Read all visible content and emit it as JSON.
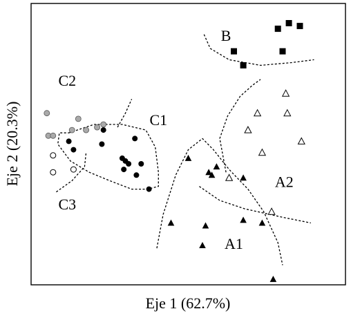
{
  "chart_data": {
    "type": "scatter",
    "xlabel": "Eje 1 (62.7%)",
    "ylabel": "Eje 2 (20.3%)",
    "grid": false,
    "legend": "none",
    "colors": {
      "axes": "#000000",
      "filled": "#000000",
      "gray_fill": "#aaaaaa",
      "open_fill": "#ffffff",
      "boundary": "#000000"
    },
    "group_labels": [
      {
        "text": "B",
        "x": 0.62,
        "y": 0.88
      },
      {
        "text": "C2",
        "x": 0.115,
        "y": 0.72
      },
      {
        "text": "C1",
        "x": 0.405,
        "y": 0.58
      },
      {
        "text": "C3",
        "x": 0.115,
        "y": 0.28
      },
      {
        "text": "A2",
        "x": 0.805,
        "y": 0.36
      },
      {
        "text": "A1",
        "x": 0.645,
        "y": 0.14
      }
    ],
    "series": [
      {
        "marker": "square-filled",
        "points": [
          [
            0.785,
            0.91
          ],
          [
            0.82,
            0.93
          ],
          [
            0.855,
            0.92
          ],
          [
            0.645,
            0.83
          ],
          [
            0.8,
            0.83
          ],
          [
            0.675,
            0.78
          ]
        ]
      },
      {
        "marker": "triangle-open",
        "points": [
          [
            0.81,
            0.68
          ],
          [
            0.72,
            0.61
          ],
          [
            0.815,
            0.61
          ],
          [
            0.69,
            0.55
          ],
          [
            0.86,
            0.51
          ],
          [
            0.735,
            0.47
          ],
          [
            0.63,
            0.38
          ],
          [
            0.765,
            0.26
          ]
        ]
      },
      {
        "marker": "triangle-filled",
        "points": [
          [
            0.5,
            0.45
          ],
          [
            0.59,
            0.42
          ],
          [
            0.565,
            0.4
          ],
          [
            0.575,
            0.39
          ],
          [
            0.675,
            0.38
          ],
          [
            0.445,
            0.22
          ],
          [
            0.555,
            0.21
          ],
          [
            0.675,
            0.23
          ],
          [
            0.735,
            0.22
          ],
          [
            0.545,
            0.14
          ],
          [
            0.77,
            0.02
          ]
        ]
      },
      {
        "marker": "circle-gray",
        "points": [
          [
            0.05,
            0.61
          ],
          [
            0.15,
            0.59
          ],
          [
            0.23,
            0.57
          ],
          [
            0.21,
            0.56
          ],
          [
            0.175,
            0.55
          ],
          [
            0.13,
            0.55
          ],
          [
            0.055,
            0.53
          ],
          [
            0.07,
            0.53
          ]
        ]
      },
      {
        "marker": "circle-filled",
        "points": [
          [
            0.23,
            0.55
          ],
          [
            0.33,
            0.52
          ],
          [
            0.12,
            0.51
          ],
          [
            0.225,
            0.5
          ],
          [
            0.135,
            0.48
          ],
          [
            0.29,
            0.45
          ],
          [
            0.3,
            0.44
          ],
          [
            0.31,
            0.43
          ],
          [
            0.35,
            0.43
          ],
          [
            0.295,
            0.41
          ],
          [
            0.335,
            0.39
          ],
          [
            0.375,
            0.34
          ]
        ]
      },
      {
        "marker": "circle-open",
        "points": [
          [
            0.07,
            0.46
          ],
          [
            0.07,
            0.4
          ],
          [
            0.135,
            0.41
          ]
        ]
      }
    ],
    "boundaries": [
      {
        "name": "B-boundary",
        "points": [
          [
            0.55,
            0.89
          ],
          [
            0.57,
            0.84
          ],
          [
            0.63,
            0.8
          ],
          [
            0.73,
            0.78
          ],
          [
            0.83,
            0.79
          ],
          [
            0.9,
            0.8
          ]
        ]
      },
      {
        "name": "C2-boundary",
        "points": [
          [
            0.275,
            0.56
          ],
          [
            0.3,
            0.61
          ],
          [
            0.32,
            0.66
          ]
        ]
      },
      {
        "name": "C1-boundary",
        "points": [
          [
            0.12,
            0.54
          ],
          [
            0.2,
            0.57
          ],
          [
            0.29,
            0.57
          ],
          [
            0.365,
            0.55
          ],
          [
            0.395,
            0.49
          ],
          [
            0.405,
            0.4
          ],
          [
            0.405,
            0.35
          ],
          [
            0.37,
            0.34
          ],
          [
            0.32,
            0.34
          ],
          [
            0.25,
            0.37
          ],
          [
            0.185,
            0.4
          ],
          [
            0.125,
            0.44
          ],
          [
            0.085,
            0.5
          ],
          [
            0.09,
            0.54
          ],
          [
            0.12,
            0.54
          ]
        ]
      },
      {
        "name": "C3-boundary",
        "points": [
          [
            0.08,
            0.33
          ],
          [
            0.13,
            0.37
          ],
          [
            0.17,
            0.42
          ],
          [
            0.175,
            0.47
          ]
        ]
      },
      {
        "name": "A1-boundary",
        "points": [
          [
            0.4,
            0.13
          ],
          [
            0.42,
            0.25
          ],
          [
            0.46,
            0.39
          ],
          [
            0.5,
            0.48
          ],
          [
            0.545,
            0.52
          ],
          [
            0.58,
            0.48
          ],
          [
            0.63,
            0.41
          ],
          [
            0.69,
            0.34
          ],
          [
            0.74,
            0.26
          ],
          [
            0.785,
            0.15
          ],
          [
            0.8,
            0.07
          ]
        ]
      },
      {
        "name": "A2-boundary",
        "points": [
          [
            0.62,
            0.4
          ],
          [
            0.6,
            0.52
          ],
          [
            0.625,
            0.6
          ],
          [
            0.665,
            0.67
          ],
          [
            0.705,
            0.71
          ],
          [
            0.73,
            0.73
          ]
        ]
      },
      {
        "name": "A2-lower-boundary",
        "points": [
          [
            0.535,
            0.35
          ],
          [
            0.6,
            0.3
          ],
          [
            0.68,
            0.27
          ],
          [
            0.8,
            0.24
          ],
          [
            0.89,
            0.22
          ]
        ]
      }
    ]
  }
}
